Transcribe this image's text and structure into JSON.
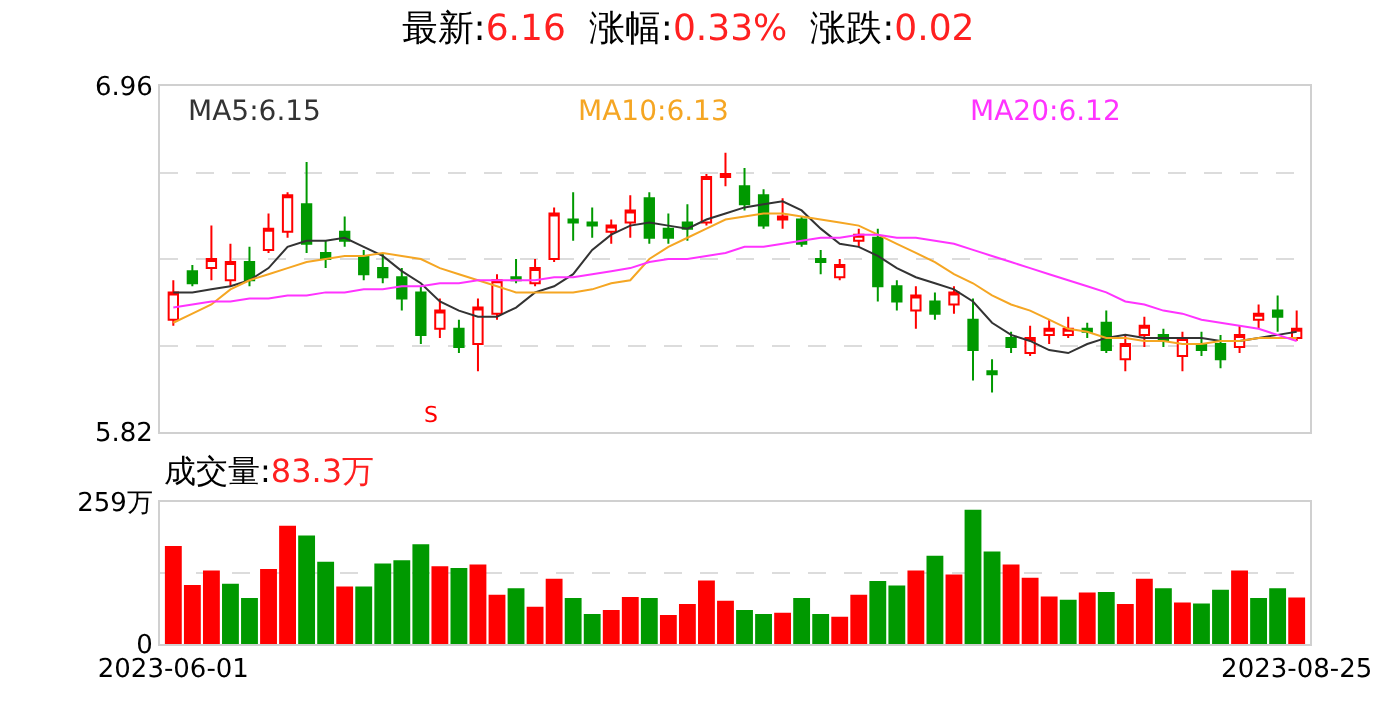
{
  "chart_data": [
    {
      "type": "candlestick",
      "title": "最新:6.16  涨幅:0.33%  涨跌:0.02",
      "categories": [
        "2023-06-01",
        null,
        null,
        null,
        null,
        null,
        null,
        null,
        null,
        null,
        null,
        null,
        null,
        null,
        null,
        null,
        null,
        null,
        null,
        null,
        null,
        null,
        null,
        null,
        null,
        null,
        null,
        null,
        null,
        null,
        null,
        null,
        null,
        null,
        null,
        null,
        null,
        null,
        null,
        null,
        null,
        null,
        null,
        null,
        null,
        null,
        null,
        null,
        null,
        null,
        null,
        null,
        null,
        null,
        null,
        null,
        null,
        null,
        null,
        "2023-08-25"
      ],
      "colors": [
        "#ff0000",
        "#009900",
        "#ff0000",
        "#ff0000",
        "#009900",
        "#ff0000",
        "#ff0000",
        "#009900",
        "#009900",
        "#009900",
        "#009900",
        "#009900",
        "#009900",
        "#009900",
        "#ff0000",
        "#009900",
        "#ff0000",
        "#ff0000",
        "#009900",
        "#ff0000",
        "#ff0000",
        "#009900",
        "#009900",
        "#ff0000",
        "#ff0000",
        "#009900",
        "#009900",
        "#009900",
        "#ff0000",
        "#ff0000",
        "#009900",
        "#009900",
        "#ff0000",
        "#009900",
        "#009900",
        "#ff0000",
        "#ff0000",
        "#009900",
        "#009900",
        "#ff0000",
        "#009900",
        "#ff0000",
        "#009900",
        "#009900",
        "#009900",
        "#ff0000",
        "#ff0000",
        "#ff0000",
        "#009900",
        "#009900",
        "#ff0000",
        "#ff0000",
        "#009900",
        "#ff0000",
        "#009900",
        "#009900",
        "#ff0000",
        "#ff0000",
        "#009900",
        "#ff0000"
      ],
      "ohlc": [
        [
          6.19,
          6.32,
          6.17,
          6.28
        ],
        [
          6.35,
          6.37,
          6.3,
          6.31
        ],
        [
          6.36,
          6.5,
          6.32,
          6.39
        ],
        [
          6.32,
          6.44,
          6.3,
          6.38
        ],
        [
          6.38,
          6.43,
          6.3,
          6.32
        ],
        [
          6.42,
          6.54,
          6.41,
          6.49
        ],
        [
          6.48,
          6.61,
          6.46,
          6.6
        ],
        [
          6.57,
          6.71,
          6.41,
          6.44
        ],
        [
          6.41,
          6.45,
          6.36,
          6.39
        ],
        [
          6.48,
          6.53,
          6.43,
          6.45
        ],
        [
          6.4,
          6.42,
          6.32,
          6.34
        ],
        [
          6.36,
          6.41,
          6.31,
          6.33
        ],
        [
          6.33,
          6.36,
          6.22,
          6.26
        ],
        [
          6.28,
          6.3,
          6.11,
          6.14
        ],
        [
          6.16,
          6.26,
          6.13,
          6.22
        ],
        [
          6.16,
          6.19,
          6.08,
          6.1
        ],
        [
          6.11,
          6.26,
          6.02,
          6.23
        ],
        [
          6.21,
          6.34,
          6.19,
          6.32
        ],
        [
          6.33,
          6.39,
          6.31,
          6.32
        ],
        [
          6.31,
          6.39,
          6.3,
          6.36
        ],
        [
          6.39,
          6.56,
          6.38,
          6.54
        ],
        [
          6.52,
          6.61,
          6.45,
          6.51
        ],
        [
          6.51,
          6.56,
          6.46,
          6.5
        ],
        [
          6.48,
          6.52,
          6.44,
          6.5
        ],
        [
          6.51,
          6.6,
          6.46,
          6.55
        ],
        [
          6.59,
          6.61,
          6.44,
          6.46
        ],
        [
          6.49,
          6.54,
          6.44,
          6.46
        ],
        [
          6.51,
          6.57,
          6.45,
          6.49
        ],
        [
          6.51,
          6.67,
          6.5,
          6.66
        ],
        [
          6.66,
          6.74,
          6.63,
          6.67
        ],
        [
          6.63,
          6.69,
          6.55,
          6.57
        ],
        [
          6.6,
          6.62,
          6.49,
          6.5
        ],
        [
          6.52,
          6.59,
          6.49,
          6.53
        ],
        [
          6.52,
          6.53,
          6.43,
          6.44
        ],
        [
          6.39,
          6.42,
          6.34,
          6.38
        ],
        [
          6.33,
          6.39,
          6.32,
          6.37
        ],
        [
          6.45,
          6.49,
          6.43,
          6.47
        ],
        [
          6.46,
          6.49,
          6.25,
          6.3
        ],
        [
          6.3,
          6.32,
          6.22,
          6.25
        ],
        [
          6.22,
          6.3,
          6.16,
          6.27
        ],
        [
          6.25,
          6.28,
          6.19,
          6.21
        ],
        [
          6.24,
          6.3,
          6.21,
          6.28
        ],
        [
          6.19,
          6.26,
          5.99,
          6.09
        ],
        [
          6.02,
          6.06,
          5.95,
          6.01
        ],
        [
          6.13,
          6.15,
          6.08,
          6.1
        ],
        [
          6.08,
          6.17,
          6.07,
          6.13
        ],
        [
          6.14,
          6.19,
          6.11,
          6.16
        ],
        [
          6.14,
          6.2,
          6.13,
          6.16
        ],
        [
          6.16,
          6.18,
          6.13,
          6.15
        ],
        [
          6.18,
          6.22,
          6.08,
          6.09
        ],
        [
          6.06,
          6.14,
          6.02,
          6.11
        ],
        [
          6.14,
          6.2,
          6.1,
          6.17
        ],
        [
          6.14,
          6.16,
          6.1,
          6.12
        ],
        [
          6.07,
          6.15,
          6.02,
          6.13
        ],
        [
          6.11,
          6.15,
          6.07,
          6.09
        ],
        [
          6.11,
          6.14,
          6.03,
          6.06
        ],
        [
          6.1,
          6.17,
          6.08,
          6.14
        ],
        [
          6.19,
          6.24,
          6.16,
          6.21
        ],
        [
          6.22,
          6.27,
          6.15,
          6.2
        ],
        [
          6.13,
          6.22,
          6.12,
          6.16
        ]
      ],
      "series": [
        {
          "type": "line",
          "name": "MA5:6.15",
          "color": "#333333",
          "values": [
            6.28,
            6.28,
            6.29,
            6.3,
            6.32,
            6.36,
            6.43,
            6.45,
            6.45,
            6.46,
            6.43,
            6.4,
            6.35,
            6.31,
            6.25,
            6.22,
            6.2,
            6.2,
            6.23,
            6.28,
            6.3,
            6.34,
            6.42,
            6.47,
            6.5,
            6.51,
            6.5,
            6.49,
            6.52,
            6.54,
            6.56,
            6.57,
            6.58,
            6.55,
            6.49,
            6.44,
            6.43,
            6.4,
            6.36,
            6.33,
            6.31,
            6.29,
            6.25,
            6.18,
            6.14,
            6.12,
            6.09,
            6.08,
            6.11,
            6.13,
            6.14,
            6.13,
            6.13,
            6.13,
            6.13,
            6.12,
            6.12,
            6.13,
            6.14,
            6.15
          ]
        },
        {
          "type": "line",
          "name": "MA10:6.13",
          "color": "#f5a623",
          "values": [
            6.18,
            6.21,
            6.24,
            6.29,
            6.32,
            6.34,
            6.36,
            6.38,
            6.39,
            6.4,
            6.4,
            6.41,
            6.4,
            6.39,
            6.36,
            6.34,
            6.32,
            6.3,
            6.28,
            6.28,
            6.28,
            6.28,
            6.29,
            6.31,
            6.32,
            6.39,
            6.43,
            6.46,
            6.49,
            6.52,
            6.53,
            6.54,
            6.54,
            6.53,
            6.52,
            6.51,
            6.5,
            6.47,
            6.44,
            6.41,
            6.38,
            6.34,
            6.31,
            6.27,
            6.24,
            6.22,
            6.19,
            6.16,
            6.15,
            6.13,
            6.13,
            6.12,
            6.12,
            6.11,
            6.11,
            6.12,
            6.12,
            6.13,
            6.13,
            6.13
          ]
        },
        {
          "type": "line",
          "name": "MA20:6.12",
          "color": "#ff33ff",
          "values": [
            6.23,
            6.24,
            6.25,
            6.25,
            6.26,
            6.26,
            6.27,
            6.27,
            6.28,
            6.28,
            6.29,
            6.29,
            6.3,
            6.3,
            6.31,
            6.31,
            6.32,
            6.32,
            6.32,
            6.32,
            6.33,
            6.33,
            6.34,
            6.35,
            6.36,
            6.38,
            6.39,
            6.39,
            6.4,
            6.41,
            6.43,
            6.43,
            6.44,
            6.45,
            6.46,
            6.46,
            6.47,
            6.47,
            6.46,
            6.46,
            6.45,
            6.44,
            6.42,
            6.4,
            6.38,
            6.36,
            6.34,
            6.32,
            6.3,
            6.28,
            6.25,
            6.24,
            6.22,
            6.21,
            6.19,
            6.18,
            6.17,
            6.16,
            6.14,
            6.12
          ]
        }
      ],
      "ylim": [
        5.82,
        6.96
      ],
      "yticks": [
        5.82,
        {
          "value": 6.105,
          "label": null
        },
        {
          "value": 6.39,
          "label": null
        },
        {
          "value": 6.675,
          "label": null
        },
        6.96
      ],
      "grid": "y",
      "tick_labels": "y",
      "annotations": [
        "S"
      ]
    },
    {
      "type": "bar",
      "title": "成交量:83.3万",
      "categories": [
        "2023-06-01",
        null,
        null,
        null,
        null,
        null,
        null,
        null,
        null,
        null,
        null,
        null,
        null,
        null,
        null,
        null,
        null,
        null,
        null,
        null,
        null,
        null,
        null,
        null,
        null,
        null,
        null,
        null,
        null,
        null,
        null,
        null,
        null,
        null,
        null,
        null,
        null,
        null,
        null,
        null,
        null,
        null,
        null,
        null,
        null,
        null,
        null,
        null,
        null,
        null,
        null,
        null,
        null,
        null,
        null,
        null,
        null,
        null,
        null,
        "2023-08-25"
      ],
      "values": [
        177,
        106,
        132,
        108,
        82,
        135,
        214,
        196,
        148,
        103,
        103,
        145,
        151,
        180,
        140,
        137,
        143,
        88,
        100,
        66,
        117,
        82,
        53,
        60,
        84,
        82,
        51,
        71,
        114,
        77,
        60,
        53,
        55,
        82,
        53,
        48,
        88,
        113,
        105,
        132,
        159,
        125,
        243,
        167,
        143,
        119,
        85,
        79,
        92,
        93,
        71,
        117,
        100,
        74,
        72,
        97,
        132,
        82,
        100,
        83
      ],
      "colors": [
        "#ff0000",
        "#ff0000",
        "#ff0000",
        "#009900",
        "#009900",
        "#ff0000",
        "#ff0000",
        "#009900",
        "#009900",
        "#ff0000",
        "#009900",
        "#009900",
        "#009900",
        "#009900",
        "#ff0000",
        "#009900",
        "#ff0000",
        "#ff0000",
        "#009900",
        "#ff0000",
        "#ff0000",
        "#009900",
        "#009900",
        "#ff0000",
        "#ff0000",
        "#009900",
        "#ff0000",
        "#ff0000",
        "#ff0000",
        "#ff0000",
        "#009900",
        "#009900",
        "#ff0000",
        "#009900",
        "#009900",
        "#ff0000",
        "#ff0000",
        "#009900",
        "#009900",
        "#ff0000",
        "#009900",
        "#ff0000",
        "#009900",
        "#009900",
        "#ff0000",
        "#ff0000",
        "#ff0000",
        "#009900",
        "#ff0000",
        "#009900",
        "#ff0000",
        "#ff0000",
        "#009900",
        "#ff0000",
        "#009900",
        "#009900",
        "#ff0000",
        "#009900",
        "#009900",
        "#ff0000"
      ],
      "ylim": [
        0,
        259
      ],
      "yticks": [
        0,
        {
          "value": 129.5,
          "label": null
        },
        {
          "value": 259,
          "label": "259万"
        }
      ],
      "grid": "y"
    }
  ]
}
